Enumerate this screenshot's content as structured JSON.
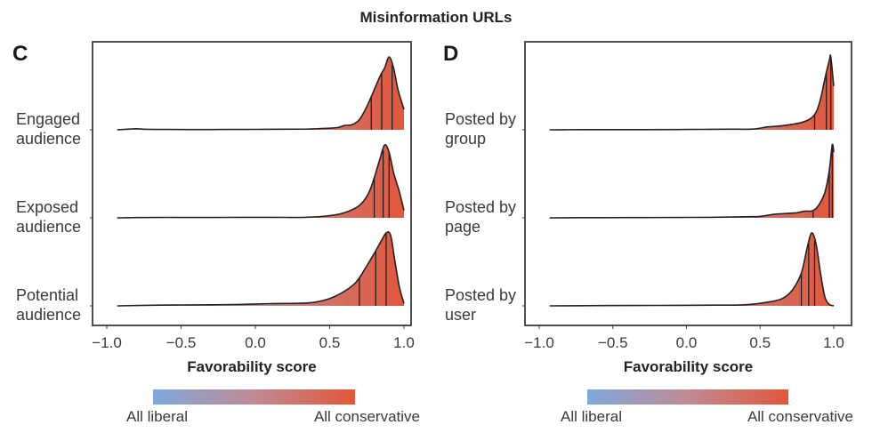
{
  "chart_data": {
    "type": "ridgeline",
    "title": "Misinformation URLs",
    "colors": {
      "liberal": "#7fa9dd",
      "conservative": "#e2573a",
      "outline": "#222222"
    },
    "legend": {
      "left_label": "All liberal",
      "right_label": "All conservative",
      "placement": "bottom"
    },
    "panels": [
      {
        "letter": "C",
        "xlabel": "Favorability score",
        "xlim": [
          -1.1,
          1.05
        ],
        "xticks": [
          -1.0,
          -0.5,
          0.0,
          0.5,
          1.0
        ],
        "xtick_labels": [
          "−1.0",
          "−0.5",
          "0.0",
          "0.5",
          "1.0"
        ],
        "series": [
          {
            "name": "Engaged audience",
            "label_lines": [
              "Engaged",
              "audience"
            ],
            "quartiles": [
              0.78,
              0.85,
              0.92
            ],
            "density": [
              [
                -0.93,
                0.0
              ],
              [
                -0.85,
                0.01
              ],
              [
                -0.8,
                0.015
              ],
              [
                -0.75,
                0.008
              ],
              [
                -0.6,
                0.005
              ],
              [
                -0.4,
                0.004
              ],
              [
                -0.2,
                0.005
              ],
              [
                0.0,
                0.006
              ],
              [
                0.2,
                0.008
              ],
              [
                0.35,
                0.01
              ],
              [
                0.45,
                0.018
              ],
              [
                0.55,
                0.03
              ],
              [
                0.6,
                0.06
              ],
              [
                0.65,
                0.07
              ],
              [
                0.7,
                0.14
              ],
              [
                0.75,
                0.32
              ],
              [
                0.8,
                0.55
              ],
              [
                0.84,
                0.74
              ],
              [
                0.87,
                0.85
              ],
              [
                0.9,
                1.0
              ],
              [
                0.93,
                0.85
              ],
              [
                0.96,
                0.55
              ],
              [
                1.0,
                0.28
              ]
            ]
          },
          {
            "name": "Exposed audience",
            "label_lines": [
              "Exposed",
              "audience"
            ],
            "quartiles": [
              0.8,
              0.86,
              0.9
            ],
            "density": [
              [
                -0.93,
                0.0
              ],
              [
                -0.8,
                0.004
              ],
              [
                -0.6,
                0.006
              ],
              [
                -0.4,
                0.005
              ],
              [
                -0.2,
                0.006
              ],
              [
                0.0,
                0.007
              ],
              [
                0.2,
                0.006
              ],
              [
                0.35,
                0.008
              ],
              [
                0.5,
                0.03
              ],
              [
                0.6,
                0.07
              ],
              [
                0.7,
                0.17
              ],
              [
                0.76,
                0.33
              ],
              [
                0.8,
                0.55
              ],
              [
                0.84,
                0.82
              ],
              [
                0.87,
                1.0
              ],
              [
                0.9,
                0.9
              ],
              [
                0.93,
                0.62
              ],
              [
                0.97,
                0.35
              ],
              [
                1.0,
                0.1
              ]
            ]
          },
          {
            "name": "Potential audience",
            "label_lines": [
              "Potential",
              "audience"
            ],
            "quartiles": [
              0.7,
              0.81,
              0.88
            ],
            "density": [
              [
                -0.93,
                0.0
              ],
              [
                -0.7,
                0.008
              ],
              [
                -0.5,
                0.012
              ],
              [
                -0.3,
                0.015
              ],
              [
                -0.1,
                0.02
              ],
              [
                0.1,
                0.03
              ],
              [
                0.3,
                0.035
              ],
              [
                0.4,
                0.05
              ],
              [
                0.5,
                0.1
              ],
              [
                0.6,
                0.2
              ],
              [
                0.68,
                0.33
              ],
              [
                0.75,
                0.55
              ],
              [
                0.8,
                0.72
              ],
              [
                0.85,
                0.9
              ],
              [
                0.88,
                1.0
              ],
              [
                0.91,
                0.97
              ],
              [
                0.94,
                0.6
              ],
              [
                0.97,
                0.25
              ],
              [
                1.0,
                0.03
              ]
            ]
          }
        ]
      },
      {
        "letter": "D",
        "xlabel": "Favorability score",
        "xlim": [
          -1.1,
          1.05
        ],
        "xticks": [
          -1.0,
          -0.5,
          0.0,
          0.5,
          1.0
        ],
        "xtick_labels": [
          "−1.0",
          "−0.5",
          "0.0",
          "0.5",
          "1.0"
        ],
        "series": [
          {
            "name": "Posted by group",
            "label_lines": [
              "Posted by",
              "group"
            ],
            "quartiles": [
              0.87,
              0.95,
              0.98
            ],
            "density": [
              [
                -0.93,
                0.0
              ],
              [
                -0.7,
                0.003
              ],
              [
                -0.5,
                0.002
              ],
              [
                -0.3,
                0.003
              ],
              [
                -0.1,
                0.004
              ],
              [
                0.1,
                0.006
              ],
              [
                0.3,
                0.008
              ],
              [
                0.45,
                0.01
              ],
              [
                0.55,
                0.04
              ],
              [
                0.62,
                0.05
              ],
              [
                0.7,
                0.07
              ],
              [
                0.78,
                0.1
              ],
              [
                0.84,
                0.15
              ],
              [
                0.88,
                0.24
              ],
              [
                0.91,
                0.42
              ],
              [
                0.94,
                0.7
              ],
              [
                0.97,
                0.95
              ],
              [
                0.98,
                1.0
              ],
              [
                1.0,
                0.6
              ]
            ]
          },
          {
            "name": "Posted by page",
            "label_lines": [
              "Posted by",
              "page"
            ],
            "quartiles": [
              0.86,
              0.97,
              0.99
            ],
            "density": [
              [
                -0.93,
                0.0
              ],
              [
                -0.6,
                0.003
              ],
              [
                -0.3,
                0.004
              ],
              [
                0.0,
                0.006
              ],
              [
                0.2,
                0.008
              ],
              [
                0.4,
                0.015
              ],
              [
                0.5,
                0.02
              ],
              [
                0.6,
                0.05
              ],
              [
                0.68,
                0.06
              ],
              [
                0.75,
                0.07
              ],
              [
                0.8,
                0.09
              ],
              [
                0.86,
                0.1
              ],
              [
                0.9,
                0.18
              ],
              [
                0.94,
                0.35
              ],
              [
                0.97,
                0.65
              ],
              [
                0.99,
                1.0
              ],
              [
                1.0,
                0.9
              ]
            ]
          },
          {
            "name": "Posted by user",
            "label_lines": [
              "Posted by",
              "user"
            ],
            "quartiles": [
              0.78,
              0.83,
              0.87
            ],
            "density": [
              [
                -0.93,
                0.0
              ],
              [
                -0.6,
                0.004
              ],
              [
                -0.2,
                0.006
              ],
              [
                0.2,
                0.01
              ],
              [
                0.4,
                0.015
              ],
              [
                0.55,
                0.05
              ],
              [
                0.65,
                0.1
              ],
              [
                0.72,
                0.22
              ],
              [
                0.78,
                0.45
              ],
              [
                0.82,
                0.8
              ],
              [
                0.85,
                1.0
              ],
              [
                0.88,
                0.85
              ],
              [
                0.91,
                0.45
              ],
              [
                0.94,
                0.12
              ],
              [
                0.97,
                0.02
              ],
              [
                1.0,
                0.0
              ]
            ]
          }
        ]
      }
    ]
  }
}
